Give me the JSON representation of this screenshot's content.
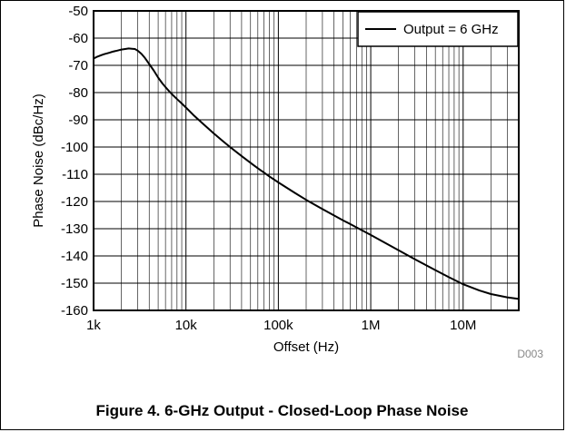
{
  "colors": {
    "axis": "#000000",
    "grid": "#000000",
    "series": "#000000",
    "text": "#000000",
    "figure_id": "#888888"
  },
  "figure": {
    "caption": "Figure 4. 6-GHz Output - Closed-Loop Phase Noise",
    "figure_id": "D003"
  },
  "chart_data": {
    "type": "line",
    "title": "",
    "xlabel": "Offset (Hz)",
    "ylabel": "Phase Noise (dBc/Hz)",
    "xscale": "log",
    "xlim": [
      1000,
      40000000
    ],
    "ylim": [
      -160,
      -50
    ],
    "xticks": [
      1000,
      10000,
      100000,
      1000000,
      10000000
    ],
    "xtick_labels": [
      "1k",
      "10k",
      "100k",
      "1M",
      "10M"
    ],
    "yticks": [
      -50,
      -60,
      -70,
      -80,
      -90,
      -100,
      -110,
      -120,
      -130,
      -140,
      -150,
      -160
    ],
    "ytick_labels": [
      "-50",
      "-60",
      "-70",
      "-80",
      "-90",
      "-100",
      "-110",
      "-120",
      "-130",
      "-140",
      "-150",
      "-160"
    ],
    "grid": true,
    "legend_position": "top-right",
    "series": [
      {
        "name": "Output = 6 GHz",
        "x": [
          1000,
          1100,
          1200,
          1300,
          1400,
          1500,
          1600,
          1700,
          1800,
          1900,
          2000,
          2200,
          2400,
          2600,
          2800,
          3000,
          3300,
          3600,
          4000,
          4500,
          5000,
          5600,
          6300,
          7000,
          8000,
          9000,
          10000,
          12000,
          15000,
          20000,
          25000,
          30000,
          40000,
          50000,
          60000,
          70000,
          80000,
          100000,
          150000,
          200000,
          300000,
          500000,
          700000,
          1000000,
          1500000,
          2000000,
          3000000,
          5000000,
          7000000,
          10000000,
          15000000,
          20000000,
          30000000,
          40000000
        ],
        "values": [
          -67.5,
          -66.8,
          -66.3,
          -65.9,
          -65.6,
          -65.3,
          -65.0,
          -64.8,
          -64.6,
          -64.4,
          -64.2,
          -64.0,
          -63.8,
          -63.9,
          -64.0,
          -64.6,
          -65.8,
          -67.3,
          -69.5,
          -72.0,
          -74.5,
          -76.8,
          -78.8,
          -80.5,
          -82.4,
          -84.0,
          -85.5,
          -88.2,
          -91.2,
          -95.0,
          -97.8,
          -100.0,
          -103.3,
          -105.8,
          -107.8,
          -109.4,
          -110.8,
          -113.0,
          -116.8,
          -119.4,
          -122.8,
          -126.9,
          -129.5,
          -132.3,
          -135.6,
          -137.9,
          -141.2,
          -145.2,
          -147.8,
          -150.4,
          -152.7,
          -154.0,
          -155.2,
          -155.8
        ]
      }
    ]
  }
}
